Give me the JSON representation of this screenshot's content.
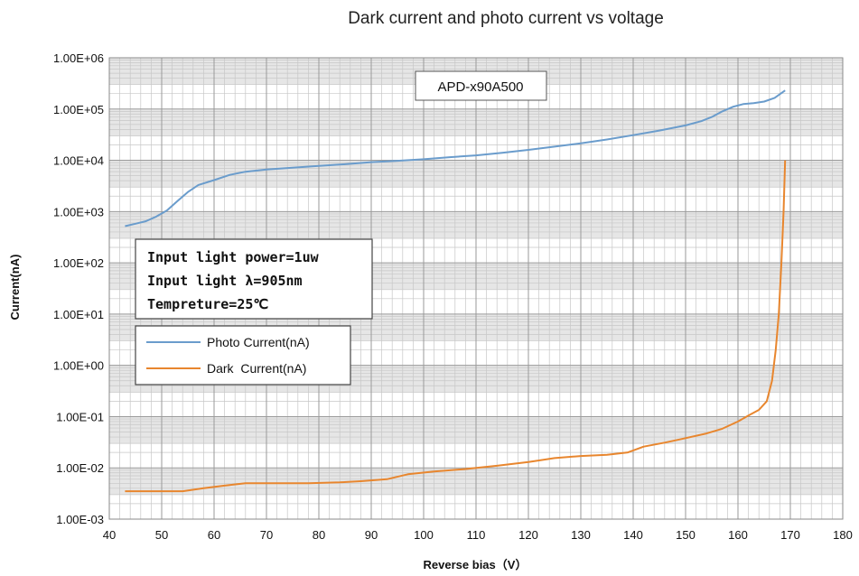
{
  "chart_data": {
    "type": "line",
    "title": "Dark current and photo current vs voltage",
    "xlabel": "Reverse bias（V）",
    "ylabel": "Current(nA)",
    "xlim": [
      40,
      180
    ],
    "x_ticks": [
      40,
      50,
      60,
      70,
      80,
      90,
      100,
      110,
      120,
      130,
      140,
      150,
      160,
      170,
      180
    ],
    "y_scale": "log",
    "ylim": [
      0.001,
      1000000
    ],
    "y_tick_values": [
      0.001,
      0.01,
      0.1,
      1,
      10,
      100,
      1000,
      10000,
      100000,
      1000000
    ],
    "y_tick_labels": [
      "1.00E-03",
      "1.00E-02",
      "1.00E-01",
      "1.00E+00",
      "1.00E+01",
      "1.00E+02",
      "1.00E+03",
      "1.00E+04",
      "1.00E+05",
      "1.00E+06"
    ],
    "grid": true,
    "annotation_model": "APD-x90A500",
    "annotation_conditions": [
      "Input light power=1uw",
      "Input light λ=905nm",
      "Tempreture=25℃"
    ],
    "legend_placement": "middle-left",
    "series": [
      {
        "name": "Photo Current(nA)",
        "color": "#6a9ccc",
        "points": [
          [
            43,
            520
          ],
          [
            45,
            580
          ],
          [
            47,
            650
          ],
          [
            49,
            800
          ],
          [
            51,
            1050
          ],
          [
            53,
            1600
          ],
          [
            55,
            2400
          ],
          [
            57,
            3300
          ],
          [
            60,
            4100
          ],
          [
            63,
            5200
          ],
          [
            66,
            6000
          ],
          [
            70,
            6600
          ],
          [
            75,
            7200
          ],
          [
            80,
            7800
          ],
          [
            85,
            8400
          ],
          [
            90,
            9200
          ],
          [
            95,
            9800
          ],
          [
            100,
            10500
          ],
          [
            105,
            11500
          ],
          [
            110,
            12500
          ],
          [
            115,
            14000
          ],
          [
            120,
            16000
          ],
          [
            125,
            18500
          ],
          [
            130,
            21500
          ],
          [
            135,
            25500
          ],
          [
            140,
            31000
          ],
          [
            145,
            38000
          ],
          [
            150,
            48000
          ],
          [
            153,
            58000
          ],
          [
            155,
            70000
          ],
          [
            157,
            90000
          ],
          [
            159,
            110000
          ],
          [
            161,
            125000
          ],
          [
            163,
            130000
          ],
          [
            165,
            140000
          ],
          [
            167,
            165000
          ],
          [
            168,
            195000
          ],
          [
            169,
            230000
          ]
        ]
      },
      {
        "name": "Dark  Current(nA)",
        "color": "#e8862e",
        "points": [
          [
            43,
            0.0035
          ],
          [
            48,
            0.0035
          ],
          [
            54,
            0.0035
          ],
          [
            58,
            0.004
          ],
          [
            62,
            0.0045
          ],
          [
            66,
            0.005
          ],
          [
            72,
            0.005
          ],
          [
            78,
            0.005
          ],
          [
            84,
            0.0052
          ],
          [
            88,
            0.0055
          ],
          [
            93,
            0.006
          ],
          [
            97,
            0.0075
          ],
          [
            102,
            0.0085
          ],
          [
            108,
            0.0095
          ],
          [
            114,
            0.011
          ],
          [
            120,
            0.013
          ],
          [
            125,
            0.0155
          ],
          [
            130,
            0.017
          ],
          [
            135,
            0.018
          ],
          [
            139,
            0.02
          ],
          [
            142,
            0.026
          ],
          [
            146,
            0.031
          ],
          [
            150,
            0.038
          ],
          [
            154,
            0.047
          ],
          [
            157,
            0.058
          ],
          [
            160,
            0.08
          ],
          [
            162,
            0.105
          ],
          [
            164,
            0.135
          ],
          [
            165.5,
            0.2
          ],
          [
            166.5,
            0.5
          ],
          [
            167.2,
            2.0
          ],
          [
            167.8,
            10
          ],
          [
            168.3,
            100
          ],
          [
            168.7,
            1000
          ],
          [
            169,
            10000
          ]
        ]
      }
    ]
  }
}
